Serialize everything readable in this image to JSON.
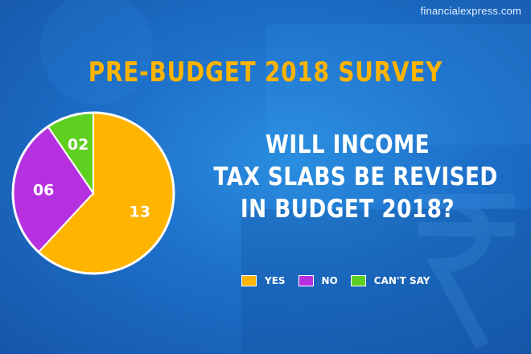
{
  "watermark": "financialexpress.com",
  "title": "PRE-BUDGET 2018 SURVEY",
  "question_lines": [
    "WILL INCOME",
    "TAX SLABS BE REVISED",
    "IN BUDGET 2018?"
  ],
  "colors": {
    "yes": "#ffb400",
    "no": "#b531e0",
    "cant_say": "#5ed01f",
    "title": "#ffb400"
  },
  "chart_data": {
    "type": "pie",
    "slices": [
      {
        "label": "YES",
        "value": 13,
        "value_text": "13",
        "color": "#ffb400"
      },
      {
        "label": "NO",
        "value": 6,
        "value_text": "06",
        "color": "#b531e0"
      },
      {
        "label": "CAN'T SAY",
        "value": 2,
        "value_text": "02",
        "color": "#5ed01f"
      }
    ],
    "legend": [
      "YES",
      "NO",
      "CAN'T SAY"
    ],
    "legend_position": "bottom-right"
  }
}
